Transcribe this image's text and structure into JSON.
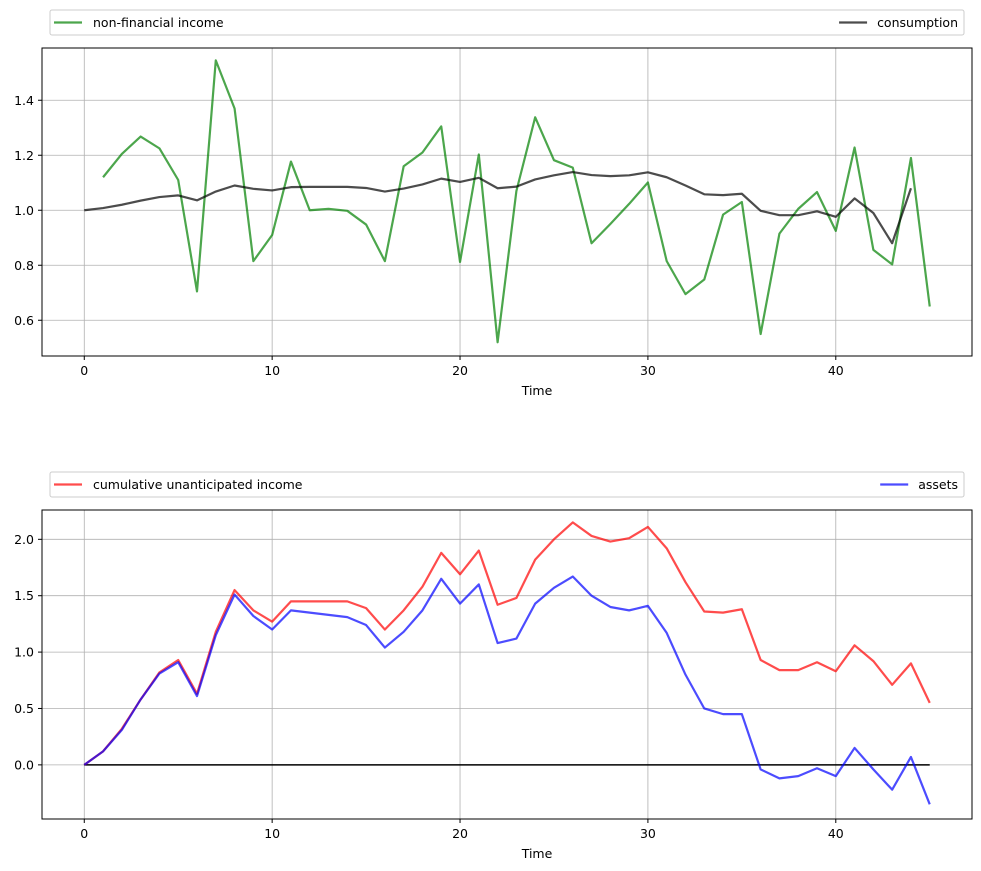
{
  "chart_data": [
    {
      "type": "line",
      "title": "",
      "xlabel": "Time",
      "ylabel": "",
      "xlim": [
        -2.25,
        47.25
      ],
      "ylim": [
        0.47,
        1.59
      ],
      "xticks": [
        0,
        10,
        20,
        30,
        40
      ],
      "yticks": [
        0.6,
        0.8,
        1.0,
        1.2,
        1.4
      ],
      "xtick_labels": [
        "0",
        "10",
        "20",
        "30",
        "40"
      ],
      "ytick_labels": [
        "0.6",
        "0.8",
        "1.0",
        "1.2",
        "1.4"
      ],
      "grid": true,
      "legend_placement": "above-plot, spread",
      "series": [
        {
          "name": "non-financial income",
          "color": "#008000",
          "x_start": 1,
          "values": [
            1.12,
            1.205,
            1.268,
            1.225,
            1.11,
            0.705,
            1.545,
            1.37,
            0.815,
            0.91,
            1.177,
            1.0,
            1.005,
            0.998,
            0.948,
            0.815,
            1.16,
            1.21,
            1.305,
            0.812,
            1.203,
            0.52,
            1.07,
            1.338,
            1.182,
            1.155,
            0.88,
            0.95,
            1.023,
            1.101,
            0.815,
            0.695,
            0.748,
            0.984,
            1.03,
            0.55,
            0.915,
            1.005,
            1.066,
            0.925,
            1.228,
            0.856,
            0.803,
            1.19,
            0.65
          ]
        },
        {
          "name": "consumption",
          "color": "#000000",
          "x_start": 0,
          "values": [
            1.0,
            1.008,
            1.02,
            1.035,
            1.048,
            1.054,
            1.036,
            1.068,
            1.09,
            1.078,
            1.072,
            1.084,
            1.085,
            1.085,
            1.085,
            1.081,
            1.068,
            1.079,
            1.094,
            1.115,
            1.103,
            1.118,
            1.08,
            1.086,
            1.112,
            1.127,
            1.139,
            1.128,
            1.124,
            1.127,
            1.138,
            1.12,
            1.09,
            1.058,
            1.055,
            1.06,
            0.998,
            0.982,
            0.982,
            0.996,
            0.976,
            1.043,
            0.99,
            0.88,
            1.08
          ]
        }
      ]
    },
    {
      "type": "line",
      "title": "",
      "xlabel": "Time",
      "ylabel": "",
      "xlim": [
        -2.25,
        47.25
      ],
      "ylim": [
        -0.48,
        2.26
      ],
      "xticks": [
        0,
        10,
        20,
        30,
        40
      ],
      "yticks": [
        0.0,
        0.5,
        1.0,
        1.5,
        2.0
      ],
      "xtick_labels": [
        "0",
        "10",
        "20",
        "30",
        "40"
      ],
      "ytick_labels": [
        "0.0",
        "0.5",
        "1.0",
        "1.5",
        "2.0"
      ],
      "grid": true,
      "legend_placement": "above-plot, spread",
      "hline": 0,
      "series": [
        {
          "name": "cumulative unanticipated income",
          "color": "#ff0000",
          "x_start": 0,
          "values": [
            0.0,
            0.12,
            0.32,
            0.58,
            0.82,
            0.93,
            0.63,
            1.18,
            1.55,
            1.37,
            1.27,
            1.45,
            1.45,
            1.45,
            1.45,
            1.39,
            1.2,
            1.37,
            1.58,
            1.88,
            1.69,
            1.9,
            1.42,
            1.48,
            1.82,
            2.0,
            2.15,
            2.03,
            1.98,
            2.01,
            2.11,
            1.92,
            1.62,
            1.36,
            1.35,
            1.38,
            0.93,
            0.84,
            0.84,
            0.91,
            0.83,
            1.06,
            0.92,
            0.71,
            0.9,
            0.55
          ]
        },
        {
          "name": "assets",
          "color": "#0000ff",
          "x_start": 0,
          "values": [
            0.0,
            0.12,
            0.31,
            0.58,
            0.81,
            0.91,
            0.61,
            1.15,
            1.51,
            1.32,
            1.2,
            1.37,
            1.35,
            1.33,
            1.31,
            1.24,
            1.04,
            1.18,
            1.37,
            1.65,
            1.43,
            1.6,
            1.08,
            1.12,
            1.43,
            1.57,
            1.67,
            1.5,
            1.4,
            1.37,
            1.41,
            1.17,
            0.8,
            0.5,
            0.45,
            0.45,
            -0.04,
            -0.12,
            -0.1,
            -0.03,
            -0.1,
            0.15,
            -0.04,
            -0.22,
            0.07,
            -0.35
          ]
        }
      ]
    }
  ]
}
